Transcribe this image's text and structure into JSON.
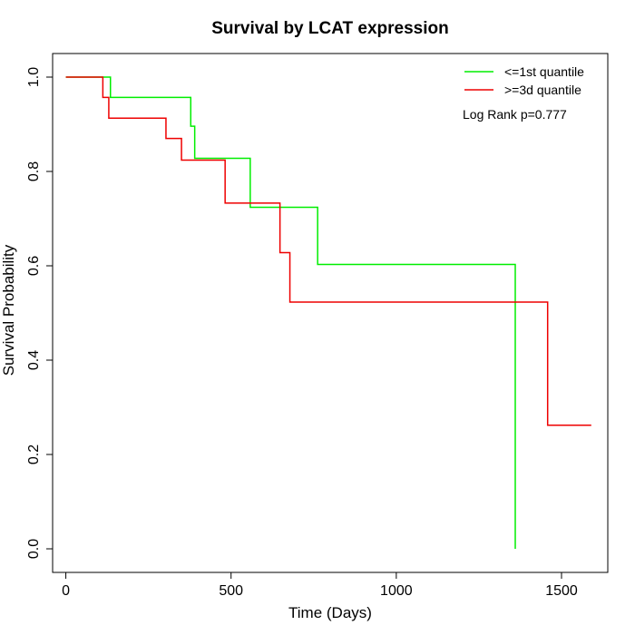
{
  "chart_data": {
    "type": "line",
    "title": "Survival by LCAT expression",
    "xlabel": "Time (Days)",
    "ylabel": "Survival Probability",
    "xlim": [
      -40,
      1640
    ],
    "ylim": [
      -0.05,
      1.05
    ],
    "x_ticks": [
      0,
      500,
      1000,
      1500
    ],
    "y_ticks": [
      0.0,
      0.2,
      0.4,
      0.6,
      0.8,
      1.0
    ],
    "x_tick_labels": [
      "0",
      "500",
      "1000",
      "1500"
    ],
    "y_tick_labels": [
      "0.0",
      "0.2",
      "0.4",
      "0.6",
      "0.8",
      "1.0"
    ],
    "grid": false,
    "legend_position": "top-right",
    "annotation": "Log Rank p=0.777",
    "series": [
      {
        "name": "<=1st quantile",
        "color": "#00ee00",
        "x": [
          0,
          135,
          378,
          390,
          558,
          762,
          1360,
          1360
        ],
        "y": [
          1.0,
          0.957,
          0.896,
          0.828,
          0.724,
          0.603,
          0.603,
          0.0
        ]
      },
      {
        "name": ">=3d quantile",
        "color": "#ee0000",
        "x": [
          0,
          112,
          130,
          303,
          350,
          482,
          648,
          678,
          1458,
          1590
        ],
        "y": [
          1.0,
          0.957,
          0.913,
          0.87,
          0.824,
          0.733,
          0.628,
          0.523,
          0.262,
          0.262
        ]
      }
    ]
  }
}
